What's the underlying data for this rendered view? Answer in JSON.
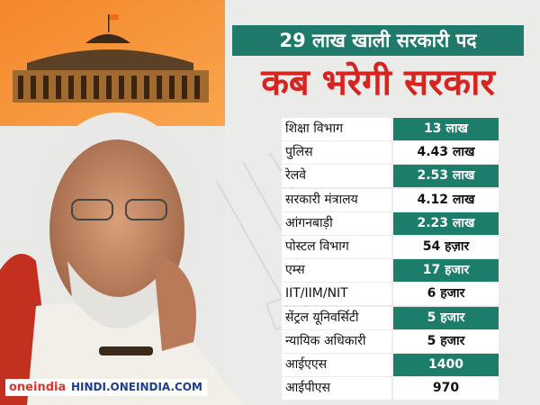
{
  "header": {
    "title": "29 लाख खाली सरकारी पद",
    "subtitle": "कब भरेगी सरकार"
  },
  "table": {
    "rows": [
      [
        "शिक्षा विभाग",
        "13 लाख"
      ],
      [
        "पुलिस",
        "4.43 लाख"
      ],
      [
        "रेलवे",
        "2.53 लाख"
      ],
      [
        "सरकारी मंत्रालय",
        "4.12 लाख"
      ],
      [
        "आंगनबाड़ी",
        "2.23 लाख"
      ],
      [
        "पोस्टल विभाग",
        "54 हज़ार"
      ],
      [
        "एम्स",
        "17 हजार"
      ],
      [
        "IIT/IIM/NIT",
        "6 हजार"
      ],
      [
        "सेंट्रल यूनिवर्सिटी",
        "5 हजार"
      ],
      [
        "न्यायिक अधिकारी",
        "5 हजार"
      ],
      [
        "आईएएस",
        "1400"
      ],
      [
        "आईपीएस",
        "970"
      ]
    ]
  },
  "footer": {
    "brand": "oneindia",
    "url": "HINDI.ONEINDIA.COM"
  }
}
